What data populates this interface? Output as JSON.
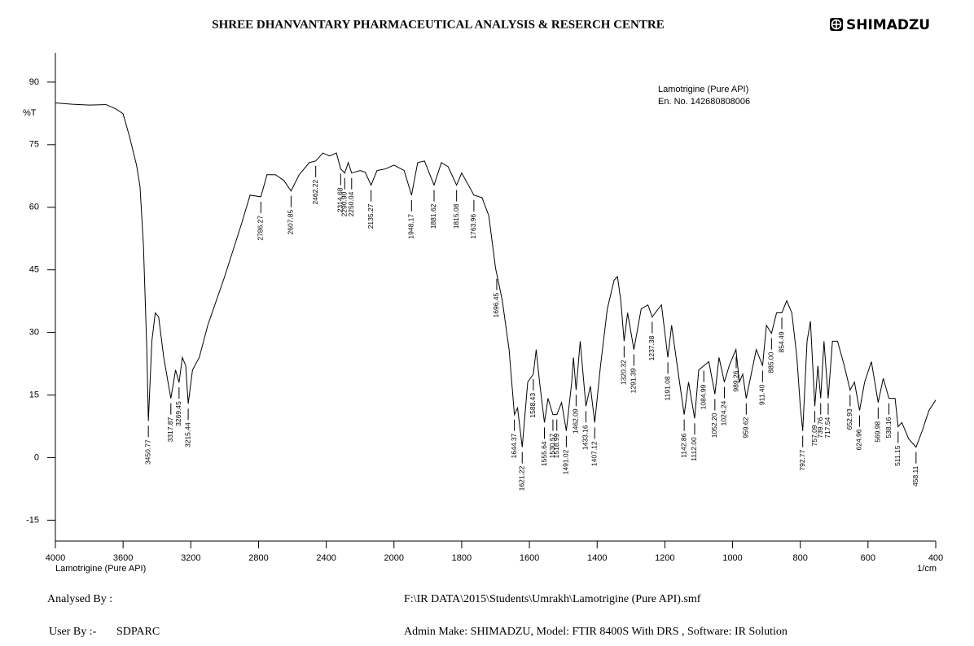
{
  "header": {
    "title": "SHREE  DHANVANTARY PHARMACEUTICAL ANALYSIS & RESERCH CENTRE",
    "logo": "SHIMADZU"
  },
  "chart_data": {
    "type": "line",
    "color": "#000000",
    "y_label": "%T",
    "x_label": "1/cm",
    "sample_label": "Lamotrigine (Pure API)",
    "annotation": [
      "Lamotrigine (Pure API)",
      "En. No. 142680808006"
    ],
    "xlim": [
      4000,
      400
    ],
    "xticks": [
      4000,
      3600,
      3200,
      2800,
      2400,
      2000,
      1800,
      1600,
      1400,
      1200,
      1000,
      800,
      600,
      400
    ],
    "ylim": [
      -20,
      97
    ],
    "yticks": [
      -15,
      0,
      15,
      30,
      45,
      60,
      75,
      90
    ],
    "x": [
      4000,
      3900,
      3800,
      3700,
      3640,
      3600,
      3560,
      3520,
      3500,
      3480,
      3460,
      3450.77,
      3430,
      3410,
      3390,
      3360,
      3317.87,
      3290,
      3269.45,
      3250,
      3230,
      3215.44,
      3190,
      3150,
      3100,
      3000,
      2900,
      2850,
      2786.27,
      2750,
      2700,
      2650,
      2607.85,
      2560,
      2500,
      2462.22,
      2420,
      2380,
      2340,
      2314.68,
      2290.9,
      2270,
      2250.04,
      2200,
      2170,
      2135.27,
      2100,
      2050,
      2000,
      1970,
      1948.17,
      1930,
      1910,
      1881.62,
      1860,
      1840,
      1815.08,
      1800,
      1780,
      1763.96,
      1740,
      1720,
      1700,
      1680,
      1660,
      1644.37,
      1635,
      1621.22,
      1605,
      1588.43,
      1580,
      1570,
      1555.64,
      1545,
      1530.57,
      1518.99,
      1505,
      1491.02,
      1475,
      1470,
      1462.09,
      1450,
      1433.16,
      1420,
      1407.12,
      1390,
      1370,
      1350,
      1340,
      1330,
      1320.32,
      1310,
      1291.39,
      1270,
      1250,
      1237.38,
      1220,
      1210,
      1191.08,
      1180,
      1160,
      1142.86,
      1130,
      1112,
      1100,
      1084.99,
      1070,
      1052.2,
      1040,
      1024.24,
      1010,
      1000,
      990,
      980,
      970,
      959.62,
      945,
      930,
      911.4,
      900,
      885,
      870,
      854.49,
      840,
      825,
      810,
      800,
      792.77,
      780,
      770,
      757.09,
      748,
      739.76,
      730,
      717.54,
      705,
      690,
      670,
      652.93,
      640,
      624.96,
      610,
      590,
      569.98,
      555,
      538.16,
      520,
      511.15,
      500,
      480,
      458.11,
      440,
      420,
      400
    ],
    "values": [
      85,
      84.7,
      84.5,
      84.6,
      83.5,
      82.4,
      76.6,
      70,
      64.9,
      51,
      26,
      8.8,
      27.9,
      34.7,
      33.7,
      24,
      14.2,
      21,
      18,
      24,
      22,
      12.9,
      21,
      24,
      31.7,
      43.4,
      56.1,
      62.9,
      62.5,
      67.8,
      67.8,
      66.4,
      63.9,
      67.8,
      70.7,
      71.1,
      73,
      72.3,
      73,
      69.2,
      68.2,
      70.7,
      68.2,
      68.8,
      68.4,
      65.3,
      68.8,
      69.2,
      70.1,
      68.8,
      62.9,
      70.7,
      71.1,
      65.3,
      70.7,
      69.7,
      65.3,
      68.2,
      65.3,
      62.9,
      62.3,
      58,
      45.4,
      37.6,
      25.9,
      10.3,
      11.9,
      2.5,
      18.1,
      20,
      25.9,
      18.1,
      8.4,
      14.2,
      10.3,
      10.3,
      13.2,
      6.4,
      18.1,
      24,
      16.2,
      27.9,
      12.3,
      17.1,
      8.4,
      22,
      35.6,
      42.5,
      43.4,
      37.6,
      27.9,
      34.7,
      25.9,
      35.6,
      36.6,
      33.7,
      35.6,
      36.6,
      24,
      31.7,
      20,
      10.3,
      18.1,
      9.4,
      21,
      22,
      23,
      15.2,
      24,
      18.1,
      22,
      24,
      25.9,
      18.1,
      20,
      14.2,
      20,
      25.9,
      22,
      31.7,
      29.8,
      34.7,
      34.7,
      37.6,
      34.7,
      24,
      12.3,
      6.4,
      27.9,
      32.7,
      12.3,
      22,
      14.2,
      27.9,
      14.2,
      27.9,
      27.9,
      22,
      16.2,
      18.1,
      11.3,
      18.1,
      23,
      13.2,
      19,
      14.2,
      14.2,
      7.4,
      8.4,
      4.5,
      2.5,
      6.4,
      11.3,
      13.8
    ],
    "peaks": [
      3450.77,
      3317.87,
      3269.45,
      3215.44,
      2786.27,
      2607.85,
      2462.22,
      2314.68,
      {
        "value": 2290.9,
        "label": "2290.90"
      },
      2250.04,
      2135.27,
      1948.17,
      1881.62,
      1815.08,
      1763.96,
      1696.45,
      1644.37,
      1621.22,
      1588.43,
      1555.64,
      1530.57,
      1518.99,
      1491.02,
      1462.09,
      1433.16,
      1407.12,
      1320.32,
      1291.39,
      1237.38,
      1191.08,
      1142.86,
      {
        "value": 1112,
        "label": "1112.00"
      },
      1084.99,
      {
        "value": 1052.2,
        "label": "1052.20"
      },
      1024.24,
      989.26,
      959.62,
      {
        "value": 911.4,
        "label": "911.40"
      },
      {
        "value": 885,
        "label": "885.00"
      },
      854.49,
      792.77,
      757.09,
      739.76,
      717.54,
      652.93,
      624.96,
      569.98,
      538.16,
      511.15,
      458.11
    ]
  },
  "footer": {
    "analysed_by": "Analysed By :",
    "file": "F:\\IR DATA\\2015\\Students\\Umrakh\\Lamotrigine (Pure API).smf",
    "user_by": "User By :-",
    "user": "SDPARC",
    "admin": "Admin Make: SHIMADZU, Model: FTIR 8400S With DRS , Software: IR Solution"
  }
}
